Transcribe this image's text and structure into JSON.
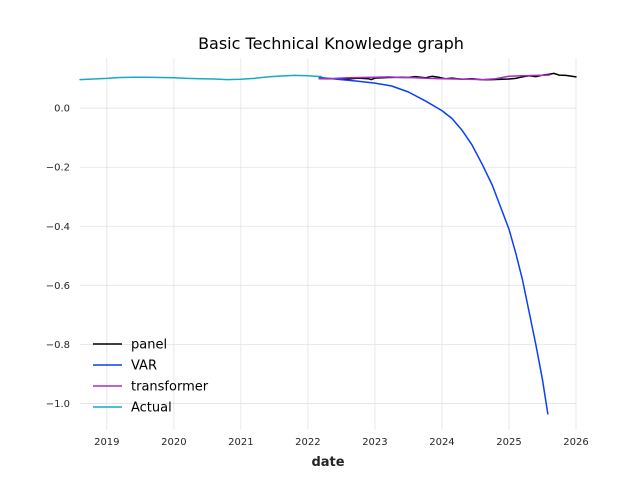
{
  "chart_data": {
    "type": "line",
    "title": "Basic Technical Knowledge graph",
    "xlabel": "date",
    "ylabel": "",
    "xlim": [
      2018.6,
      2026.0
    ],
    "ylim": [
      -1.09,
      0.17
    ],
    "x_ticks": [
      2019,
      2020,
      2021,
      2022,
      2023,
      2024,
      2025,
      2026
    ],
    "x_tick_labels": [
      "2019",
      "2020",
      "2021",
      "2022",
      "2023",
      "2024",
      "2025",
      "2026"
    ],
    "y_ticks": [
      0.0,
      -0.2,
      -0.4,
      -0.6,
      -0.8,
      -1.0
    ],
    "y_tick_labels": [
      "0.0",
      "−0.2",
      "−0.4",
      "−0.6",
      "−0.8",
      "−1.0"
    ],
    "grid": true,
    "legend_position": "lower-left",
    "series": [
      {
        "name": "panel",
        "color": "#000000",
        "points": [
          [
            2022.17,
            0.1
          ],
          [
            2022.4,
            0.1
          ],
          [
            2022.6,
            0.099
          ],
          [
            2022.75,
            0.102
          ],
          [
            2022.9,
            0.1
          ],
          [
            2022.95,
            0.097
          ],
          [
            2023.0,
            0.102
          ],
          [
            2023.2,
            0.104
          ],
          [
            2023.4,
            0.105
          ],
          [
            2023.5,
            0.104
          ],
          [
            2023.6,
            0.107
          ],
          [
            2023.75,
            0.103
          ],
          [
            2023.85,
            0.108
          ],
          [
            2023.95,
            0.105
          ],
          [
            2024.05,
            0.1
          ],
          [
            2024.15,
            0.102
          ],
          [
            2024.3,
            0.098
          ],
          [
            2024.45,
            0.1
          ],
          [
            2024.6,
            0.096
          ],
          [
            2024.75,
            0.097
          ],
          [
            2024.9,
            0.098
          ],
          [
            2025.0,
            0.099
          ],
          [
            2025.1,
            0.101
          ],
          [
            2025.2,
            0.106
          ],
          [
            2025.3,
            0.11
          ],
          [
            2025.4,
            0.107
          ],
          [
            2025.5,
            0.112
          ],
          [
            2025.6,
            0.115
          ],
          [
            2025.67,
            0.118
          ],
          [
            2025.75,
            0.112
          ],
          [
            2025.85,
            0.111
          ],
          [
            2026.0,
            0.106
          ]
        ]
      },
      {
        "name": "VAR",
        "color": "#0b3ff5",
        "points": [
          [
            2022.17,
            0.104
          ],
          [
            2022.5,
            0.097
          ],
          [
            2022.75,
            0.091
          ],
          [
            2023.0,
            0.085
          ],
          [
            2023.25,
            0.075
          ],
          [
            2023.5,
            0.055
          ],
          [
            2023.75,
            0.025
          ],
          [
            2024.0,
            -0.008
          ],
          [
            2024.15,
            -0.035
          ],
          [
            2024.3,
            -0.075
          ],
          [
            2024.45,
            -0.125
          ],
          [
            2024.6,
            -0.19
          ],
          [
            2024.75,
            -0.26
          ],
          [
            2024.9,
            -0.35
          ],
          [
            2025.0,
            -0.41
          ],
          [
            2025.1,
            -0.49
          ],
          [
            2025.2,
            -0.58
          ],
          [
            2025.3,
            -0.69
          ],
          [
            2025.4,
            -0.8
          ],
          [
            2025.5,
            -0.92
          ],
          [
            2025.58,
            -1.035
          ]
        ]
      },
      {
        "name": "transformer",
        "color": "#a62ec8",
        "points": [
          [
            2022.17,
            0.1
          ],
          [
            2022.4,
            0.101
          ],
          [
            2022.6,
            0.103
          ],
          [
            2022.8,
            0.104
          ],
          [
            2023.0,
            0.105
          ],
          [
            2023.2,
            0.106
          ],
          [
            2023.4,
            0.104
          ],
          [
            2023.6,
            0.103
          ],
          [
            2023.8,
            0.101
          ],
          [
            2024.0,
            0.1
          ],
          [
            2024.2,
            0.099
          ],
          [
            2024.4,
            0.098
          ],
          [
            2024.6,
            0.097
          ],
          [
            2024.8,
            0.1
          ],
          [
            2024.9,
            0.104
          ],
          [
            2025.0,
            0.108
          ],
          [
            2025.2,
            0.11
          ],
          [
            2025.4,
            0.111
          ],
          [
            2025.6,
            0.112
          ]
        ]
      },
      {
        "name": "Actual",
        "color": "#1aa9c3",
        "points": [
          [
            2018.6,
            0.097
          ],
          [
            2018.8,
            0.099
          ],
          [
            2019.0,
            0.101
          ],
          [
            2019.2,
            0.104
          ],
          [
            2019.4,
            0.105
          ],
          [
            2019.6,
            0.105
          ],
          [
            2019.8,
            0.104
          ],
          [
            2020.0,
            0.103
          ],
          [
            2020.2,
            0.101
          ],
          [
            2020.4,
            0.1
          ],
          [
            2020.6,
            0.099
          ],
          [
            2020.8,
            0.097
          ],
          [
            2021.0,
            0.098
          ],
          [
            2021.2,
            0.101
          ],
          [
            2021.4,
            0.106
          ],
          [
            2021.6,
            0.109
          ],
          [
            2021.8,
            0.111
          ],
          [
            2022.0,
            0.11
          ],
          [
            2022.2,
            0.107
          ]
        ]
      }
    ]
  }
}
